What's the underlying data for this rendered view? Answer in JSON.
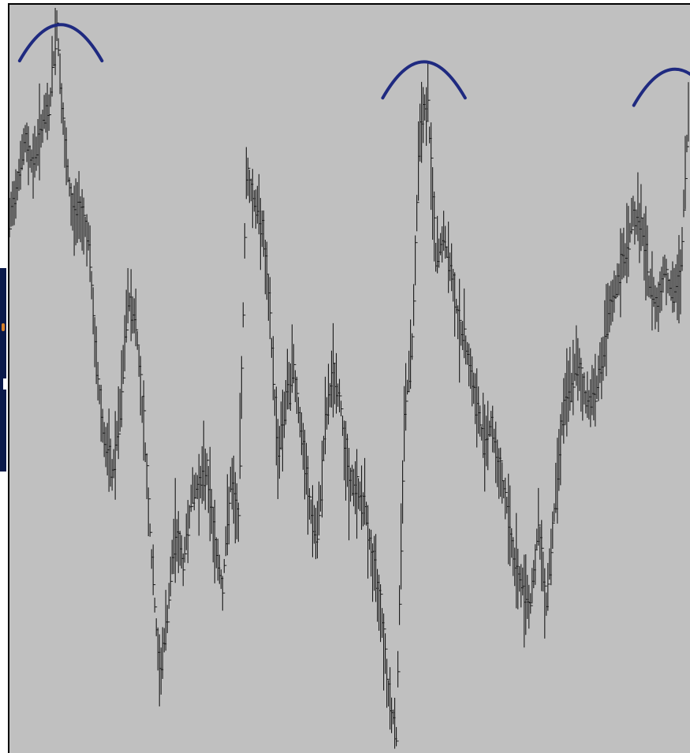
{
  "chart_data": {
    "type": "ohlc",
    "title": "",
    "xlabel": "",
    "ylabel": "",
    "grid": false,
    "legend": "none",
    "colors": {
      "background": "#c0c0c0",
      "bars": "#1a1a1a",
      "arcs": "#1f2a80",
      "frame": "#000000"
    },
    "ylim": [
      0,
      100
    ],
    "x": [
      0,
      10,
      20,
      30,
      40,
      50,
      60,
      70,
      80,
      90,
      100,
      110,
      120,
      130,
      140,
      150,
      160,
      170,
      180,
      190,
      200,
      210,
      220,
      230,
      240,
      250,
      260,
      270,
      280,
      290,
      300,
      310,
      320,
      330,
      340,
      350,
      360,
      370,
      380,
      390,
      400,
      410,
      420,
      430,
      440,
      450,
      460,
      470,
      480,
      490,
      500,
      510,
      520,
      530,
      540,
      550,
      560,
      570,
      580,
      590,
      600,
      610,
      620,
      630,
      640,
      650,
      660,
      670,
      680,
      690,
      700,
      710,
      720,
      730,
      740,
      750,
      760,
      770,
      780,
      790,
      800,
      810,
      820,
      830,
      840,
      850,
      860
    ],
    "series": [
      {
        "values": [
          71,
          77,
          82,
          79,
          84,
          86,
          98,
          81,
          72,
          73,
          69,
          52,
          42,
          37,
          45,
          61,
          58,
          44,
          26,
          10,
          18,
          30,
          25,
          34,
          36,
          38,
          28,
          22,
          36,
          31,
          78,
          74,
          71,
          58,
          40,
          47,
          52,
          42,
          33,
          28,
          44,
          51,
          46,
          36,
          35,
          33,
          25,
          20,
          8,
          2,
          45,
          55,
          85,
          87,
          66,
          69,
          64,
          57,
          54,
          47,
          42,
          44,
          38,
          33,
          25,
          22,
          20,
          30,
          20,
          32,
          45,
          49,
          52,
          47,
          48,
          52,
          59,
          63,
          67,
          72,
          71,
          63,
          60,
          65,
          61,
          64,
          86
        ]
      }
    ],
    "annotations": [
      {
        "type": "arc",
        "x": 65,
        "y": 98
      },
      {
        "type": "arc",
        "x": 525,
        "y": 93
      },
      {
        "type": "arc",
        "x": 843,
        "y": 92
      }
    ]
  }
}
